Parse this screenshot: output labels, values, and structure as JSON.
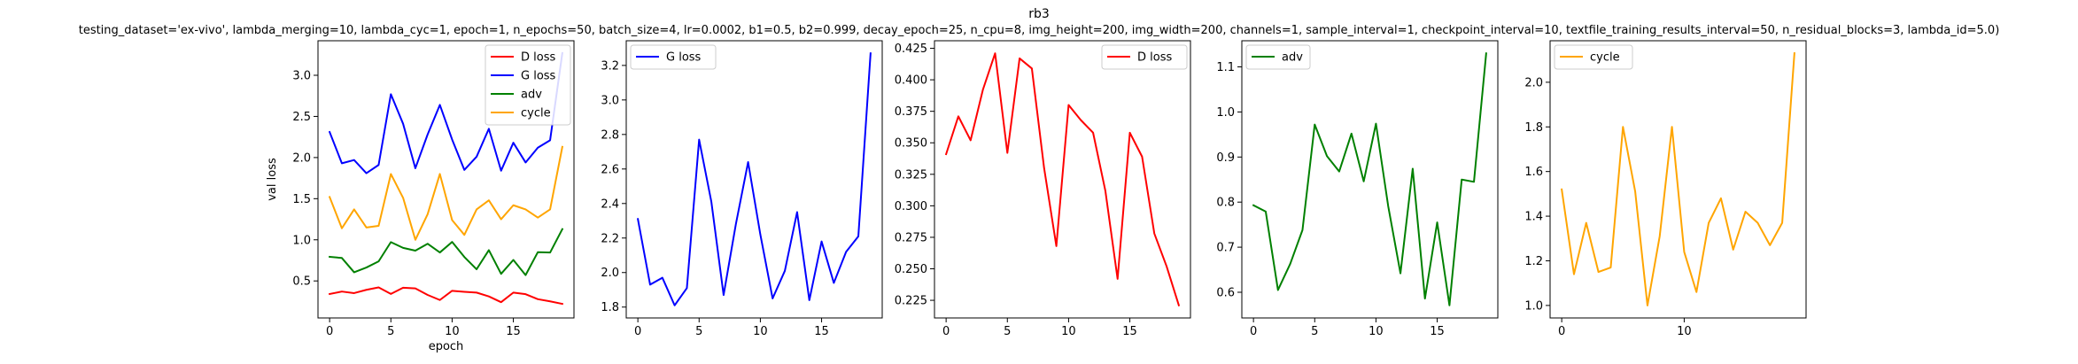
{
  "figure": {
    "title": "rb3",
    "subtitle": "testing_dataset='ex-vivo', lambda_merging=10, lambda_cyc=1, epoch=1, n_epochs=50, batch_size=4, lr=0.0002, b1=0.5, b2=0.999, decay_epoch=25, n_cpu=8, img_height=200, img_width=200, channels=1, sample_interval=1, checkpoint_interval=10, textfile_training_results_interval=50, n_residual_blocks=3, lambda_id=5.0)"
  },
  "colors": {
    "d_loss": "#ff0000",
    "g_loss": "#0000ff",
    "adv": "#008000",
    "cycle": "#ffa500"
  },
  "chart_data": [
    {
      "type": "line",
      "title": "",
      "xlabel": "epoch",
      "ylabel": "val loss",
      "xlim": [
        -0.95,
        19.95
      ],
      "ylim": [
        0.05,
        3.42
      ],
      "xticks": [
        0,
        5,
        10,
        15
      ],
      "yticks": [
        0.5,
        1.0,
        1.5,
        2.0,
        2.5,
        3.0
      ],
      "ytick_labels": [
        "0.5",
        "1.0",
        "1.5",
        "2.0",
        "2.5",
        "3.0"
      ],
      "legend_position": "top-right",
      "x": [
        0,
        1,
        2,
        3,
        4,
        5,
        6,
        7,
        8,
        9,
        10,
        11,
        12,
        13,
        14,
        15,
        16,
        17,
        18,
        19
      ],
      "series": [
        {
          "name": "D loss",
          "color": "#ff0000",
          "values": [
            0.341,
            0.371,
            0.352,
            0.392,
            0.421,
            0.342,
            0.417,
            0.409,
            0.33,
            0.268,
            0.38,
            0.368,
            0.358,
            0.312,
            0.242,
            0.358,
            0.339,
            0.278,
            0.252,
            0.221
          ]
        },
        {
          "name": "G loss",
          "color": "#0000ff",
          "values": [
            2.31,
            1.93,
            1.97,
            1.81,
            1.91,
            2.77,
            2.41,
            1.87,
            2.28,
            2.64,
            2.22,
            1.85,
            2.01,
            2.35,
            1.84,
            2.18,
            1.94,
            2.12,
            2.21,
            3.27
          ]
        },
        {
          "name": "adv",
          "color": "#008000",
          "values": [
            0.793,
            0.779,
            0.605,
            0.663,
            0.738,
            0.972,
            0.902,
            0.868,
            0.952,
            0.846,
            0.974,
            0.791,
            0.642,
            0.874,
            0.586,
            0.755,
            0.571,
            0.85,
            0.845,
            1.13
          ]
        },
        {
          "name": "cycle",
          "color": "#ffa500",
          "values": [
            1.52,
            1.14,
            1.37,
            1.15,
            1.17,
            1.8,
            1.51,
            1.0,
            1.31,
            1.8,
            1.24,
            1.06,
            1.37,
            1.48,
            1.25,
            1.42,
            1.37,
            1.27,
            1.37,
            2.13
          ]
        }
      ]
    },
    {
      "type": "line",
      "title": "",
      "xlabel": "",
      "ylabel": "",
      "xlim": [
        -0.95,
        19.95
      ],
      "ylim": [
        1.737,
        3.343
      ],
      "xticks": [
        0,
        5,
        10,
        15
      ],
      "yticks": [
        1.8,
        2.0,
        2.2,
        2.4,
        2.6,
        2.8,
        3.0,
        3.2
      ],
      "ytick_labels": [
        "1.8",
        "2.0",
        "2.2",
        "2.4",
        "2.6",
        "2.8",
        "3.0",
        "3.2"
      ],
      "legend_position": "top-left",
      "x": [
        0,
        1,
        2,
        3,
        4,
        5,
        6,
        7,
        8,
        9,
        10,
        11,
        12,
        13,
        14,
        15,
        16,
        17,
        18,
        19
      ],
      "series": [
        {
          "name": "G loss",
          "color": "#0000ff",
          "values": [
            2.31,
            1.93,
            1.97,
            1.81,
            1.91,
            2.77,
            2.41,
            1.87,
            2.28,
            2.64,
            2.22,
            1.85,
            2.01,
            2.35,
            1.84,
            2.18,
            1.94,
            2.12,
            2.21,
            3.27
          ]
        }
      ]
    },
    {
      "type": "line",
      "title": "",
      "xlabel": "",
      "ylabel": "",
      "xlim": [
        -0.95,
        19.95
      ],
      "ylim": [
        0.211,
        0.431
      ],
      "xticks": [
        0,
        5,
        10,
        15
      ],
      "yticks": [
        0.225,
        0.25,
        0.275,
        0.3,
        0.325,
        0.35,
        0.375,
        0.4,
        0.425
      ],
      "ytick_labels": [
        "0.225",
        "0.250",
        "0.275",
        "0.300",
        "0.325",
        "0.350",
        "0.375",
        "0.400",
        "0.425"
      ],
      "legend_position": "top-right",
      "x": [
        0,
        1,
        2,
        3,
        4,
        5,
        6,
        7,
        8,
        9,
        10,
        11,
        12,
        13,
        14,
        15,
        16,
        17,
        18,
        19
      ],
      "series": [
        {
          "name": "D loss",
          "color": "#ff0000",
          "values": [
            0.341,
            0.371,
            0.352,
            0.392,
            0.421,
            0.342,
            0.417,
            0.409,
            0.33,
            0.268,
            0.38,
            0.368,
            0.358,
            0.312,
            0.242,
            0.358,
            0.339,
            0.278,
            0.252,
            0.221
          ]
        }
      ]
    },
    {
      "type": "line",
      "title": "",
      "xlabel": "",
      "ylabel": "",
      "xlim": [
        -0.95,
        19.95
      ],
      "ylim": [
        0.543,
        1.158
      ],
      "xticks": [
        0,
        5,
        10,
        15
      ],
      "yticks": [
        0.6,
        0.7,
        0.8,
        0.9,
        1.0,
        1.1
      ],
      "ytick_labels": [
        "0.6",
        "0.7",
        "0.8",
        "0.9",
        "1.0",
        "1.1"
      ],
      "legend_position": "top-left",
      "x": [
        0,
        1,
        2,
        3,
        4,
        5,
        6,
        7,
        8,
        9,
        10,
        11,
        12,
        13,
        14,
        15,
        16,
        17,
        18,
        19
      ],
      "series": [
        {
          "name": "adv",
          "color": "#008000",
          "values": [
            0.793,
            0.779,
            0.605,
            0.663,
            0.738,
            0.972,
            0.902,
            0.868,
            0.952,
            0.846,
            0.974,
            0.791,
            0.642,
            0.874,
            0.586,
            0.755,
            0.571,
            0.85,
            0.845,
            1.13
          ]
        }
      ]
    },
    {
      "type": "line",
      "title": "",
      "xlabel": "",
      "ylabel": "",
      "xlim": [
        -0.95,
        19.95
      ],
      "ylim": [
        0.944,
        2.186
      ],
      "xticks": [
        0,
        10
      ],
      "yticks": [
        1.0,
        1.2,
        1.4,
        1.6,
        1.8,
        2.0
      ],
      "ytick_labels": [
        "1.0",
        "1.2",
        "1.4",
        "1.6",
        "1.8",
        "2.0"
      ],
      "legend_position": "top-left",
      "x": [
        0,
        1,
        2,
        3,
        4,
        5,
        6,
        7,
        8,
        9,
        10,
        11,
        12,
        13,
        14,
        15,
        16,
        17,
        18,
        19
      ],
      "series": [
        {
          "name": "cycle",
          "color": "#ffa500",
          "values": [
            1.52,
            1.14,
            1.37,
            1.15,
            1.17,
            1.8,
            1.51,
            1.0,
            1.31,
            1.8,
            1.24,
            1.06,
            1.37,
            1.48,
            1.25,
            1.42,
            1.37,
            1.27,
            1.37,
            2.13
          ]
        }
      ]
    }
  ]
}
